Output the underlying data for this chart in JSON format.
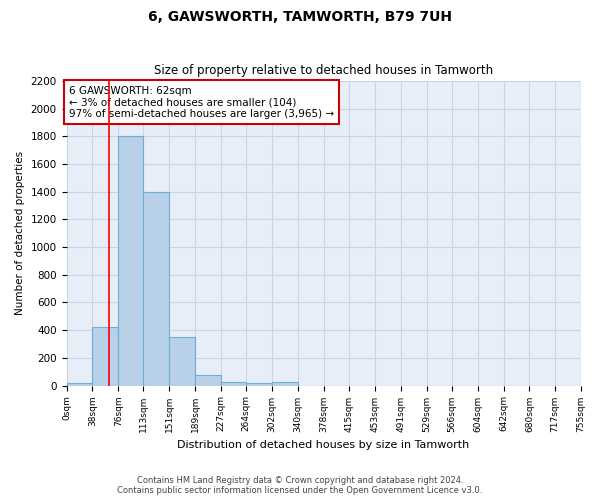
{
  "title": "6, GAWSWORTH, TAMWORTH, B79 7UH",
  "subtitle": "Size of property relative to detached houses in Tamworth",
  "xlabel": "Distribution of detached houses by size in Tamworth",
  "ylabel": "Number of detached properties",
  "bar_values": [
    15,
    420,
    1800,
    1400,
    350,
    75,
    25,
    15,
    25,
    0,
    0,
    0,
    0,
    0,
    0,
    0,
    0,
    0,
    0,
    0
  ],
  "bin_edges": [
    0,
    38,
    76,
    113,
    151,
    189,
    227,
    264,
    302,
    340,
    378,
    415,
    453,
    491,
    529,
    566,
    604,
    642,
    680,
    717,
    755
  ],
  "tick_labels": [
    "0sqm",
    "38sqm",
    "76sqm",
    "113sqm",
    "151sqm",
    "189sqm",
    "227sqm",
    "264sqm",
    "302sqm",
    "340sqm",
    "378sqm",
    "415sqm",
    "453sqm",
    "491sqm",
    "529sqm",
    "566sqm",
    "604sqm",
    "642sqm",
    "680sqm",
    "717sqm",
    "755sqm"
  ],
  "bar_color": "#b8d0e8",
  "bar_edge_color": "#6baed6",
  "bar_edge_width": 0.8,
  "grid_color": "#c8d4e8",
  "bg_color": "#e8eef8",
  "red_line_x": 62,
  "annotation_line1": "6 GAWSWORTH: 62sqm",
  "annotation_line2": "← 3% of detached houses are smaller (104)",
  "annotation_line3": "97% of semi-detached houses are larger (3,965) →",
  "annotation_box_color": "#cc0000",
  "ylim": [
    0,
    2200
  ],
  "yticks": [
    0,
    200,
    400,
    600,
    800,
    1000,
    1200,
    1400,
    1600,
    1800,
    2000,
    2200
  ],
  "footer_line1": "Contains HM Land Registry data © Crown copyright and database right 2024.",
  "footer_line2": "Contains public sector information licensed under the Open Government Licence v3.0."
}
